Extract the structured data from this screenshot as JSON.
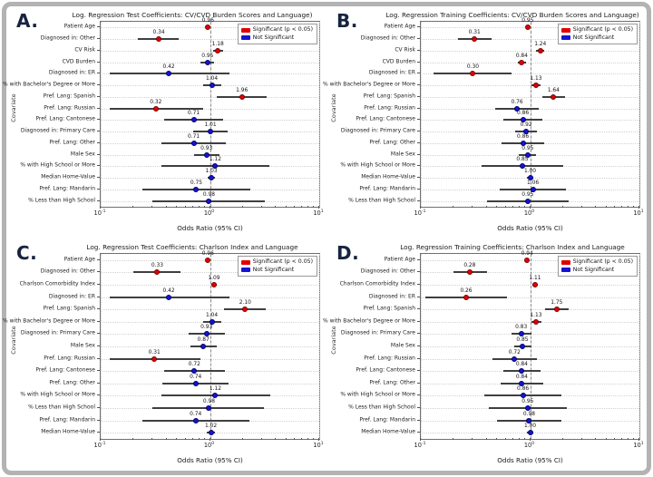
{
  "figure": {
    "background": "#ffffff",
    "frame_border_color": "#b3b3b3",
    "panel_letter_color": "#17243f"
  },
  "colors": {
    "significant": "#e00000",
    "significant_edge": "#7a0000",
    "not_significant": "#1414d2",
    "not_significant_edge": "#00006b",
    "error_bar": "#3f3f3f",
    "reference_line": "#8a8a8a"
  },
  "chart_data": [
    {
      "type": "scatter",
      "subtype": "forest-plot",
      "panel_label": "A.",
      "title": "Log. Regression Test Coefficients: CV/CVD Burden Scores and Language)",
      "xlabel": "Odds Ratio (95% CI)",
      "ylabel": "Covariate",
      "xscale": "log",
      "xlim": [
        0.1,
        10
      ],
      "xticks": [
        "10^-1",
        "10^0",
        "10^1"
      ],
      "reference_line_x": 1,
      "grid": true,
      "legend_position": "top-right",
      "legend": [
        {
          "label": "Significant (p < 0.05)",
          "color": "#e00000"
        },
        {
          "label": "Not Significant",
          "color": "#1414d2"
        }
      ],
      "points": [
        {
          "label": "Patient Age",
          "or": 0.96,
          "ci_low": 0.93,
          "ci_high": 0.99,
          "significant": true
        },
        {
          "label": "Diagnosed in: Other",
          "or": 0.34,
          "ci_low": 0.22,
          "ci_high": 0.52,
          "significant": true
        },
        {
          "label": "CV Risk",
          "or": 1.18,
          "ci_low": 1.06,
          "ci_high": 1.32,
          "significant": true
        },
        {
          "label": "CVD Burden",
          "or": 0.95,
          "ci_low": 0.82,
          "ci_high": 1.1,
          "significant": false
        },
        {
          "label": "Diagnosed in: ER",
          "or": 0.42,
          "ci_low": 0.12,
          "ci_high": 1.5,
          "significant": false
        },
        {
          "label": "% with Bachelor's Degree or More",
          "or": 1.04,
          "ci_low": 0.86,
          "ci_high": 1.26,
          "significant": false
        },
        {
          "label": "Pref. Lang: Spanish",
          "or": 1.96,
          "ci_low": 1.16,
          "ci_high": 3.3,
          "significant": true
        },
        {
          "label": "Pref. Lang: Russian",
          "or": 0.32,
          "ci_low": 0.12,
          "ci_high": 0.86,
          "significant": true
        },
        {
          "label": "Pref. Lang: Cantonese",
          "or": 0.71,
          "ci_low": 0.38,
          "ci_high": 1.33,
          "significant": false
        },
        {
          "label": "Diagnosed in: Primary Care",
          "or": 1.01,
          "ci_low": 0.7,
          "ci_high": 1.45,
          "significant": false
        },
        {
          "label": "Pref. Lang: Other",
          "or": 0.71,
          "ci_low": 0.36,
          "ci_high": 1.4,
          "significant": false
        },
        {
          "label": "Male Sex",
          "or": 0.93,
          "ci_low": 0.71,
          "ci_high": 1.22,
          "significant": false
        },
        {
          "label": "% with High School or More",
          "or": 1.12,
          "ci_low": 0.36,
          "ci_high": 3.5,
          "significant": false
        },
        {
          "label": "Median Home-Value",
          "or": 1.03,
          "ci_low": 0.95,
          "ci_high": 1.12,
          "significant": false
        },
        {
          "label": "Pref. Lang: Mandarin",
          "or": 0.75,
          "ci_low": 0.24,
          "ci_high": 2.35,
          "significant": false
        },
        {
          "label": "% Less than High School",
          "or": 0.98,
          "ci_low": 0.3,
          "ci_high": 3.2,
          "significant": false
        }
      ]
    },
    {
      "type": "scatter",
      "subtype": "forest-plot",
      "panel_label": "B.",
      "title": "Log. Regression Training Coefficients: CV/CVD Burden Scores and Language)",
      "xlabel": "Odds Ratio (95% CI)",
      "ylabel": "Covariate",
      "xscale": "log",
      "xlim": [
        0.1,
        10
      ],
      "xticks": [
        "10^-1",
        "10^0",
        "10^1"
      ],
      "reference_line_x": 1,
      "grid": true,
      "legend_position": "top-right",
      "legend": [
        {
          "label": "Significant (p < 0.05)",
          "color": "#e00000"
        },
        {
          "label": "Not Significant",
          "color": "#1414d2"
        }
      ],
      "points": [
        {
          "label": "Patient Age",
          "or": 0.95,
          "ci_low": 0.93,
          "ci_high": 0.97,
          "significant": true
        },
        {
          "label": "Diagnosed in: Other",
          "or": 0.31,
          "ci_low": 0.22,
          "ci_high": 0.44,
          "significant": true
        },
        {
          "label": "CV Risk",
          "or": 1.24,
          "ci_low": 1.14,
          "ci_high": 1.35,
          "significant": true
        },
        {
          "label": "CVD Burden",
          "or": 0.84,
          "ci_low": 0.77,
          "ci_high": 0.92,
          "significant": true
        },
        {
          "label": "Diagnosed in: ER",
          "or": 0.3,
          "ci_low": 0.13,
          "ci_high": 0.68,
          "significant": true
        },
        {
          "label": "% with Bachelor's Degree or More",
          "or": 1.13,
          "ci_low": 1.02,
          "ci_high": 1.25,
          "significant": true
        },
        {
          "label": "Pref. Lang: Spanish",
          "or": 1.64,
          "ci_low": 1.3,
          "ci_high": 2.07,
          "significant": true
        },
        {
          "label": "Pref. Lang: Russian",
          "or": 0.76,
          "ci_low": 0.48,
          "ci_high": 1.2,
          "significant": false
        },
        {
          "label": "Pref. Lang: Cantonese",
          "or": 0.86,
          "ci_low": 0.57,
          "ci_high": 1.3,
          "significant": false
        },
        {
          "label": "Diagnosed in: Primary Care",
          "or": 0.92,
          "ci_low": 0.73,
          "ci_high": 1.15,
          "significant": false
        },
        {
          "label": "Pref. Lang: Other",
          "or": 0.86,
          "ci_low": 0.55,
          "ci_high": 1.35,
          "significant": false
        },
        {
          "label": "Male Sex",
          "or": 0.95,
          "ci_low": 0.79,
          "ci_high": 1.14,
          "significant": false
        },
        {
          "label": "% with High School or More",
          "or": 0.85,
          "ci_low": 0.36,
          "ci_high": 2.0,
          "significant": false
        },
        {
          "label": "Median Home-Value",
          "or": 1.0,
          "ci_low": 0.94,
          "ci_high": 1.06,
          "significant": false
        },
        {
          "label": "Pref. Lang: Mandarin",
          "or": 1.06,
          "ci_low": 0.53,
          "ci_high": 2.12,
          "significant": false
        },
        {
          "label": "% Less than High School",
          "or": 0.95,
          "ci_low": 0.4,
          "ci_high": 2.25,
          "significant": false
        }
      ]
    },
    {
      "type": "scatter",
      "subtype": "forest-plot",
      "panel_label": "C.",
      "title": "Log. Regression Test Coefficients: Charlson Index and Language",
      "xlabel": "Odds Ratio (95% CI)",
      "ylabel": "Covariate",
      "xscale": "log",
      "xlim": [
        0.1,
        10
      ],
      "xticks": [
        "10^-1",
        "10^0",
        "10^1"
      ],
      "reference_line_x": 1,
      "grid": true,
      "legend_position": "top-right",
      "legend": [
        {
          "label": "Significant (p < 0.05)",
          "color": "#e00000"
        },
        {
          "label": "Not Significant",
          "color": "#1414d2"
        }
      ],
      "points": [
        {
          "label": "Patient Age",
          "or": 0.96,
          "ci_low": 0.93,
          "ci_high": 0.99,
          "significant": true
        },
        {
          "label": "Diagnosed in: Other",
          "or": 0.33,
          "ci_low": 0.2,
          "ci_high": 0.54,
          "significant": true
        },
        {
          "label": "Charlson Comorbidity Index",
          "or": 1.09,
          "ci_low": 1.03,
          "ci_high": 1.16,
          "significant": true
        },
        {
          "label": "Diagnosed in: ER",
          "or": 0.42,
          "ci_low": 0.12,
          "ci_high": 1.5,
          "significant": false
        },
        {
          "label": "Pref. Lang: Spanish",
          "or": 2.1,
          "ci_low": 1.35,
          "ci_high": 3.25,
          "significant": true
        },
        {
          "label": "% with Bachelor's Degree or More",
          "or": 1.04,
          "ci_low": 0.86,
          "ci_high": 1.27,
          "significant": false
        },
        {
          "label": "Diagnosed in: Primary Care",
          "or": 0.93,
          "ci_low": 0.64,
          "ci_high": 1.36,
          "significant": false
        },
        {
          "label": "Male Sex",
          "or": 0.87,
          "ci_low": 0.66,
          "ci_high": 1.15,
          "significant": false
        },
        {
          "label": "Pref. Lang: Russian",
          "or": 0.31,
          "ci_low": 0.12,
          "ci_high": 0.82,
          "significant": true
        },
        {
          "label": "Pref. Lang: Cantonese",
          "or": 0.72,
          "ci_low": 0.38,
          "ci_high": 1.36,
          "significant": false
        },
        {
          "label": "Pref. Lang: Other",
          "or": 0.74,
          "ci_low": 0.37,
          "ci_high": 1.48,
          "significant": false
        },
        {
          "label": "% with High School or More",
          "or": 1.12,
          "ci_low": 0.36,
          "ci_high": 3.55,
          "significant": false
        },
        {
          "label": "% Less than High School",
          "or": 0.98,
          "ci_low": 0.3,
          "ci_high": 3.1,
          "significant": false
        },
        {
          "label": "Pref. Lang: Mandarin",
          "or": 0.74,
          "ci_low": 0.24,
          "ci_high": 2.3,
          "significant": false
        },
        {
          "label": "Median Home-Value",
          "or": 1.02,
          "ci_low": 0.94,
          "ci_high": 1.11,
          "significant": false
        }
      ]
    },
    {
      "type": "scatter",
      "subtype": "forest-plot",
      "panel_label": "D.",
      "title": "Log. Regression Training Coefficients: Charlson Index and Language",
      "xlabel": "Odds Ratio (95% CI)",
      "ylabel": "Covariate",
      "xscale": "log",
      "xlim": [
        0.1,
        10
      ],
      "xticks": [
        "10^-1",
        "10^0",
        "10^1"
      ],
      "reference_line_x": 1,
      "grid": true,
      "legend_position": "top-right",
      "legend": [
        {
          "label": "Significant (p < 0.05)",
          "color": "#e00000"
        },
        {
          "label": "Not Significant",
          "color": "#1414d2"
        }
      ],
      "points": [
        {
          "label": "Patient Age",
          "or": 0.94,
          "ci_low": 0.92,
          "ci_high": 0.96,
          "significant": true
        },
        {
          "label": "Diagnosed in: Other",
          "or": 0.28,
          "ci_low": 0.2,
          "ci_high": 0.4,
          "significant": true
        },
        {
          "label": "Charlson Comorbidity Index",
          "or": 1.11,
          "ci_low": 1.05,
          "ci_high": 1.18,
          "significant": true
        },
        {
          "label": "Diagnosed in: ER",
          "or": 0.26,
          "ci_low": 0.11,
          "ci_high": 0.62,
          "significant": true
        },
        {
          "label": "Pref. Lang: Spanish",
          "or": 1.75,
          "ci_low": 1.37,
          "ci_high": 2.24,
          "significant": true
        },
        {
          "label": "% with Bachelor's Degree or More",
          "or": 1.13,
          "ci_low": 1.02,
          "ci_high": 1.26,
          "significant": true
        },
        {
          "label": "Diagnosed in: Primary Care",
          "or": 0.83,
          "ci_low": 0.67,
          "ci_high": 1.03,
          "significant": false
        },
        {
          "label": "Male Sex",
          "or": 0.85,
          "ci_low": 0.71,
          "ci_high": 1.02,
          "significant": false
        },
        {
          "label": "Pref. Lang: Russian",
          "or": 0.72,
          "ci_low": 0.45,
          "ci_high": 1.15,
          "significant": false
        },
        {
          "label": "Pref. Lang: Cantonese",
          "or": 0.84,
          "ci_low": 0.57,
          "ci_high": 1.25,
          "significant": false
        },
        {
          "label": "Pref. Lang: Other",
          "or": 0.84,
          "ci_low": 0.54,
          "ci_high": 1.31,
          "significant": false
        },
        {
          "label": "% with High School or More",
          "or": 0.86,
          "ci_low": 0.38,
          "ci_high": 1.95,
          "significant": false
        },
        {
          "label": "% Less than High School",
          "or": 0.95,
          "ci_low": 0.42,
          "ci_high": 2.15,
          "significant": false
        },
        {
          "label": "Pref. Lang: Mandarin",
          "or": 0.98,
          "ci_low": 0.5,
          "ci_high": 1.92,
          "significant": false
        },
        {
          "label": "Median Home-Value",
          "or": 1.0,
          "ci_low": 0.94,
          "ci_high": 1.06,
          "significant": false
        }
      ]
    }
  ]
}
